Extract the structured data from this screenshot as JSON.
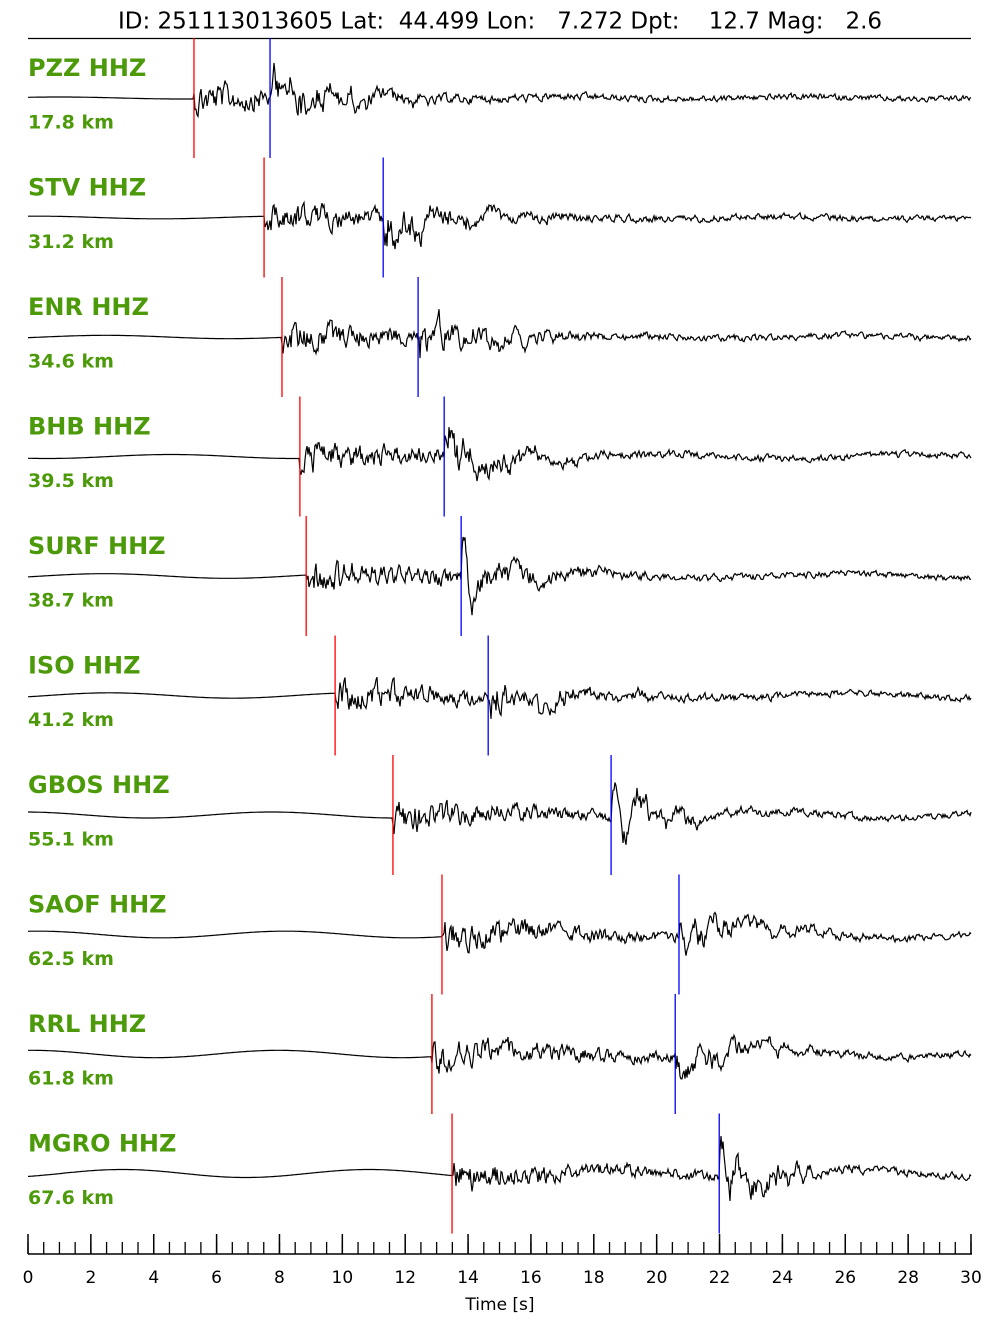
{
  "chart_data": {
    "type": "seismogram",
    "title": "ID: 251113013605 Lat:  44.499 Lon:   7.272 Dpt:    12.7 Mag:   2.6",
    "xlabel": "Time [s]",
    "xlim": [
      0,
      30
    ],
    "xticks": [
      0,
      2,
      4,
      6,
      8,
      10,
      12,
      14,
      16,
      18,
      20,
      22,
      24,
      26,
      28,
      30
    ],
    "xminorticks": [
      0,
      0.5,
      1,
      1.5,
      2,
      2.5,
      3,
      3.5,
      4,
      4.5,
      5,
      5.5,
      6,
      6.5,
      7,
      7.5,
      8,
      8.5,
      9,
      9.5,
      10,
      10.5,
      11,
      11.5,
      12,
      12.5,
      13,
      13.5,
      14,
      14.5,
      15,
      15.5,
      16,
      16.5,
      17,
      17.5,
      18,
      18.5,
      19,
      19.5,
      20,
      20.5,
      21,
      21.5,
      22,
      22.5,
      23,
      23.5,
      24,
      24.5,
      25,
      25.5,
      26,
      26.5,
      27,
      27.5,
      28,
      28.5,
      29,
      29.5,
      30
    ],
    "label_color": "#4c9a0a",
    "trace_color": "#000000",
    "p_color": "#ff0000",
    "s_color": "#0000ff",
    "traces": [
      {
        "name": "PZZ HHZ",
        "distance": "17.8 km",
        "p": 5.28,
        "s": 7.7
      },
      {
        "name": "STV HHZ",
        "distance": "31.2 km",
        "p": 7.51,
        "s": 11.3
      },
      {
        "name": "ENR HHZ",
        "distance": "34.6 km",
        "p": 8.08,
        "s": 12.41
      },
      {
        "name": "BHB HHZ",
        "distance": "39.5 km",
        "p": 8.65,
        "s": 13.24
      },
      {
        "name": "SURF HHZ",
        "distance": "38.7 km",
        "p": 8.85,
        "s": 13.78
      },
      {
        "name": "ISO HHZ",
        "distance": "41.2 km",
        "p": 9.77,
        "s": 14.64
      },
      {
        "name": "GBOS HHZ",
        "distance": "55.1 km",
        "p": 11.61,
        "s": 18.55
      },
      {
        "name": "SAOF HHZ",
        "distance": "62.5 km",
        "p": 13.17,
        "s": 20.71
      },
      {
        "name": "RRL HHZ",
        "distance": "61.8 km",
        "p": 12.85,
        "s": 20.59
      },
      {
        "name": "MGRO HHZ",
        "distance": "67.6 km",
        "p": 13.49,
        "s": 21.99
      }
    ]
  }
}
